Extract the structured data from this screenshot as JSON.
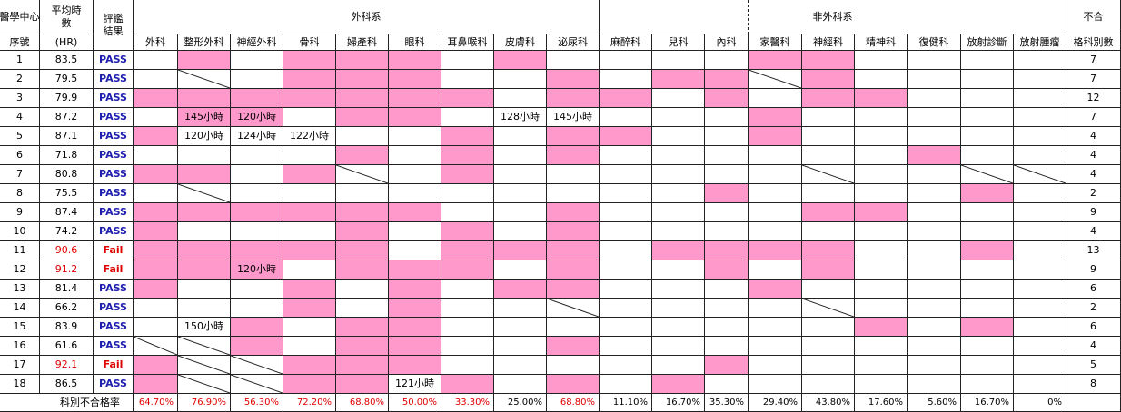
{
  "header": {
    "center": "醫學中心",
    "no": "序號",
    "hours": "平均時數",
    "hours_unit": "(HR)",
    "result": "評鑑結果",
    "surgical": "外科系",
    "non_surgical": "非外科系",
    "fail_count_top": "不合",
    "fail_count_bottom": "格科別數",
    "specialties": [
      "外科",
      "整形外科",
      "神經外科",
      "骨科",
      "婦產科",
      "眼科",
      "耳鼻喉科",
      "皮膚科",
      "泌尿科",
      "麻醉科",
      "兒科",
      "內科",
      "家醫科",
      "神經科",
      "精神科",
      "復健科",
      "放射診斷",
      "放射腫瘤"
    ]
  },
  "colors": {
    "pink": "#ff99cc",
    "pass": "#2020b0",
    "fail": "#e00000"
  },
  "rows": [
    {
      "no": 1,
      "hours": 83.5,
      "result": "PASS",
      "fail_count": 7,
      "cells": [
        null,
        "pink",
        null,
        "pink",
        "pink",
        "pink",
        null,
        "pink",
        null,
        null,
        null,
        null,
        "pink",
        "pink",
        null,
        null,
        null,
        null
      ]
    },
    {
      "no": 2,
      "hours": 79.5,
      "result": "PASS",
      "fail_count": 7,
      "cells": [
        null,
        "slash",
        null,
        "pink",
        "pink",
        "pink",
        null,
        null,
        "pink",
        null,
        "pink",
        "pink",
        "slash",
        "pink",
        null,
        null,
        null,
        null
      ]
    },
    {
      "no": 3,
      "hours": 79.9,
      "result": "PASS",
      "fail_count": 12,
      "cells": [
        "pink",
        "pink",
        "pink",
        "pink",
        "pink",
        "pink",
        "pink",
        null,
        "pink",
        "pink",
        null,
        "pink",
        null,
        "pink",
        "pink",
        null,
        null,
        null
      ]
    },
    {
      "no": 4,
      "hours": 87.2,
      "result": "PASS",
      "fail_count": 7,
      "cells": [
        null,
        {
          "fill": "pink",
          "text": "145小時"
        },
        {
          "fill": "pink",
          "text": "120小時"
        },
        null,
        "pink",
        "pink",
        null,
        {
          "text": "128小時"
        },
        {
          "text": "145小時"
        },
        null,
        null,
        null,
        "pink",
        null,
        null,
        null,
        null,
        null
      ]
    },
    {
      "no": 5,
      "hours": 87.1,
      "result": "PASS",
      "fail_count": 4,
      "cells": [
        "pink",
        {
          "text": "120小時"
        },
        {
          "text": "124小時"
        },
        {
          "text": "122小時"
        },
        null,
        null,
        "pink",
        null,
        "pink",
        "pink",
        null,
        null,
        "pink",
        null,
        null,
        null,
        null,
        null
      ]
    },
    {
      "no": 6,
      "hours": 71.8,
      "result": "PASS",
      "fail_count": 4,
      "cells": [
        null,
        null,
        null,
        null,
        "pink",
        null,
        "pink",
        null,
        "pink",
        null,
        null,
        null,
        null,
        null,
        null,
        "pink",
        null,
        null
      ]
    },
    {
      "no": 7,
      "hours": 80.8,
      "result": "PASS",
      "fail_count": 4,
      "cells": [
        "pink",
        "pink",
        null,
        "pink",
        "slash",
        null,
        "pink",
        null,
        null,
        null,
        null,
        null,
        null,
        "slash",
        null,
        null,
        "slash",
        "slash"
      ]
    },
    {
      "no": 8,
      "hours": 75.5,
      "result": "PASS",
      "fail_count": 2,
      "cells": [
        null,
        "slash",
        null,
        null,
        null,
        null,
        null,
        null,
        null,
        null,
        null,
        "pink",
        null,
        null,
        null,
        null,
        "pink",
        null
      ]
    },
    {
      "no": 9,
      "hours": 87.4,
      "result": "PASS",
      "fail_count": 9,
      "cells": [
        "pink",
        "pink",
        "pink",
        "pink",
        "pink",
        "pink",
        null,
        null,
        "pink",
        null,
        null,
        null,
        null,
        "pink",
        "pink",
        null,
        null,
        null
      ]
    },
    {
      "no": 10,
      "hours": 74.2,
      "result": "PASS",
      "fail_count": 4,
      "cells": [
        "pink",
        null,
        null,
        null,
        "pink",
        null,
        "pink",
        null,
        "pink",
        null,
        null,
        null,
        null,
        null,
        null,
        null,
        null,
        null
      ]
    },
    {
      "no": 11,
      "hours": 90.6,
      "result": "Fail",
      "fail_count": 13,
      "cells": [
        "pink",
        "pink",
        "pink",
        "pink",
        "pink",
        null,
        "pink",
        "pink",
        "pink",
        null,
        "pink",
        "pink",
        "pink",
        "pink",
        null,
        null,
        "pink",
        null
      ]
    },
    {
      "no": 12,
      "hours": 91.2,
      "result": "Fail",
      "fail_count": 9,
      "cells": [
        "pink",
        "pink",
        {
          "fill": "pink",
          "text": "120小時"
        },
        null,
        "pink",
        "pink",
        "pink",
        null,
        "pink",
        null,
        null,
        "pink",
        null,
        "pink",
        null,
        null,
        null,
        null
      ]
    },
    {
      "no": 13,
      "hours": 81.4,
      "result": "PASS",
      "fail_count": 6,
      "cells": [
        "pink",
        null,
        null,
        "pink",
        null,
        "pink",
        null,
        "pink",
        "pink",
        null,
        null,
        null,
        "pink",
        null,
        null,
        null,
        null,
        null
      ]
    },
    {
      "no": 14,
      "hours": 66.2,
      "result": "PASS",
      "fail_count": 2,
      "cells": [
        null,
        null,
        null,
        "pink",
        null,
        "pink",
        null,
        null,
        "slash",
        null,
        null,
        null,
        null,
        "slash",
        null,
        null,
        null,
        null
      ]
    },
    {
      "no": 15,
      "hours": 83.9,
      "result": "PASS",
      "fail_count": 6,
      "cells": [
        null,
        {
          "text": "150小時"
        },
        "pink",
        null,
        "pink",
        "pink",
        null,
        null,
        null,
        null,
        null,
        null,
        null,
        null,
        "pink",
        null,
        "pink",
        null
      ]
    },
    {
      "no": 16,
      "hours": 61.6,
      "result": "PASS",
      "fail_count": 4,
      "cells": [
        "slash",
        "slash",
        "pink",
        null,
        "pink",
        "pink",
        null,
        null,
        "pink",
        null,
        null,
        null,
        null,
        null,
        null,
        null,
        null,
        null
      ]
    },
    {
      "no": 17,
      "hours": 92.1,
      "result": "Fail",
      "fail_count": 5,
      "cells": [
        "pink",
        "slash",
        "slash",
        "pink",
        "pink",
        "pink",
        null,
        null,
        null,
        null,
        null,
        "pink",
        null,
        null,
        null,
        null,
        null,
        null
      ]
    },
    {
      "no": 18,
      "hours": 86.5,
      "result": "PASS",
      "fail_count": 8,
      "cells": [
        "pink",
        "slash",
        "slash",
        "pink",
        "pink",
        {
          "text": "121小時"
        },
        "pink",
        null,
        "pink",
        null,
        "pink",
        null,
        null,
        null,
        null,
        null,
        null,
        null
      ]
    }
  ],
  "footer": {
    "label": "科別不合格率",
    "rates": [
      "64.70%",
      "76.90%",
      "56.30%",
      "72.20%",
      "68.80%",
      "50.00%",
      "33.30%",
      "25.00%",
      "68.80%",
      "11.10%",
      "16.70%",
      "35.30%",
      "29.40%",
      "43.80%",
      "17.60%",
      "5.60%",
      "16.70%",
      "0%"
    ],
    "highlighted": [
      true,
      true,
      true,
      true,
      true,
      true,
      true,
      false,
      true,
      false,
      false,
      false,
      false,
      false,
      false,
      false,
      false,
      false
    ]
  }
}
